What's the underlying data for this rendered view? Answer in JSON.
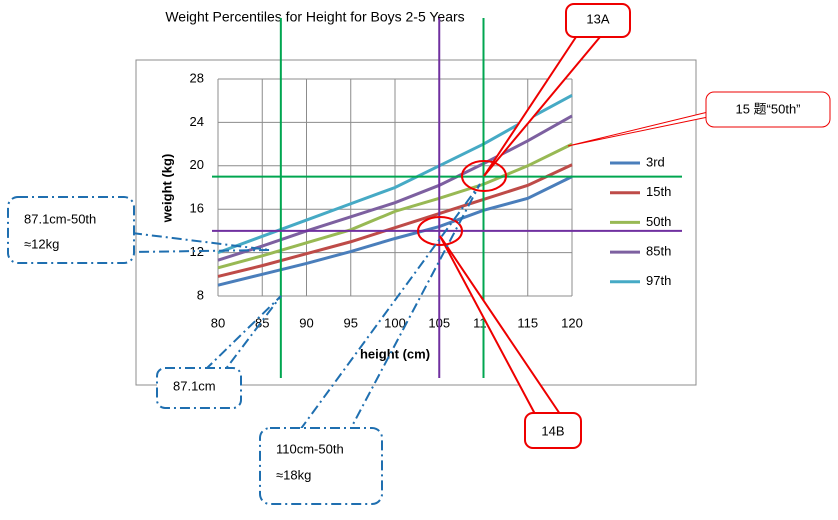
{
  "chart_data": {
    "type": "line",
    "title": "Weight Percentiles for Height for Boys 2-5 Years",
    "x_label": "height (cm)",
    "y_label": "weight (kg)",
    "x": [
      80,
      85,
      90,
      95,
      100,
      105,
      110,
      115,
      120
    ],
    "series": [
      {
        "name": "3rd",
        "color": "#4a7ebb",
        "values": [
          9.0,
          10.0,
          11.0,
          12.1,
          13.3,
          14.4,
          15.9,
          17.0,
          19.0
        ]
      },
      {
        "name": "15th",
        "color": "#be4b48",
        "values": [
          9.8,
          10.8,
          11.9,
          13.0,
          14.3,
          15.6,
          16.9,
          18.2,
          20.1
        ]
      },
      {
        "name": "50th",
        "color": "#98b954",
        "values": [
          10.6,
          11.7,
          12.9,
          14.1,
          15.8,
          17.0,
          18.3,
          20.0,
          22.0
        ]
      },
      {
        "name": "85th",
        "color": "#7d60a0",
        "values": [
          11.3,
          12.6,
          14.0,
          15.3,
          16.6,
          18.2,
          20.2,
          22.3,
          24.6
        ]
      },
      {
        "name": "97th",
        "color": "#46aac5",
        "values": [
          12.0,
          13.5,
          15.0,
          16.5,
          18.0,
          20.0,
          22.0,
          24.3,
          26.5
        ]
      }
    ],
    "xlim": [
      80,
      120
    ],
    "ylim": [
      8,
      28
    ],
    "xticks": [
      80,
      85,
      90,
      95,
      100,
      105,
      110,
      115,
      120
    ],
    "yticks": [
      8,
      12,
      16,
      20,
      24,
      28
    ],
    "grid": true,
    "legend": "right",
    "reference_lines": [
      {
        "axis": "x",
        "value": 87.1,
        "color": "#00a650"
      },
      {
        "axis": "x",
        "value": 110,
        "color": "#00a650"
      },
      {
        "axis": "y",
        "value": 19,
        "color": "#00a650"
      },
      {
        "axis": "x",
        "value": 105,
        "color": "#7030a0"
      },
      {
        "axis": "y",
        "value": 14,
        "color": "#7030a0"
      }
    ],
    "annotations": [
      "13A",
      "15 题“50th”",
      "14B",
      "87.1cm-50th",
      "≈12kg",
      "87.1cm",
      "110cm-50th",
      "≈18kg"
    ]
  }
}
